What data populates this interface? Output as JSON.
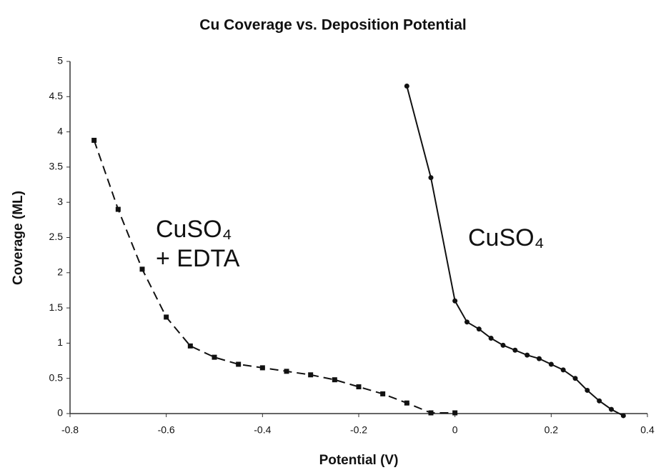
{
  "chart_data": {
    "type": "line",
    "title": "Cu Coverage vs. Deposition Potential",
    "xlabel": "Potential (V)",
    "ylabel": "Coverage (ML)",
    "xlim": [
      -0.8,
      0.4
    ],
    "xticks": [
      -0.8,
      -0.6,
      -0.4,
      -0.2,
      0,
      0.2,
      0.4
    ],
    "ylim": [
      0,
      5
    ],
    "yticks": [
      0,
      0.5,
      1,
      1.5,
      2,
      2.5,
      3,
      3.5,
      4,
      4.5,
      5
    ],
    "grid": false,
    "series": [
      {
        "color": "#111111",
        "dash": true,
        "marker": "square",
        "x": [
          -0.75,
          -0.7,
          -0.65,
          -0.6,
          -0.55,
          -0.5,
          -0.45,
          -0.4,
          -0.35,
          -0.3,
          -0.25,
          -0.2,
          -0.15,
          -0.1,
          -0.05,
          0
        ],
        "values": [
          3.88,
          2.9,
          2.05,
          1.37,
          0.96,
          0.8,
          0.7,
          0.65,
          0.6,
          0.55,
          0.48,
          0.38,
          0.28,
          0.15,
          0.01,
          0.01
        ]
      },
      {
        "color": "#111111",
        "dash": false,
        "marker": "circle",
        "x": [
          -0.1,
          -0.05,
          0,
          0.025,
          0.05,
          0.075,
          0.1,
          0.125,
          0.15,
          0.175,
          0.2,
          0.225,
          0.25,
          0.275,
          0.3,
          0.325,
          0.35
        ],
        "values": [
          4.65,
          3.35,
          1.6,
          1.3,
          1.2,
          1.07,
          0.97,
          0.9,
          0.83,
          0.78,
          0.7,
          0.62,
          0.5,
          0.33,
          0.18,
          0.06,
          -0.03
        ]
      }
    ],
    "annotations": [
      "CuSO₄",
      "+ EDTA",
      "CuSO₄"
    ]
  }
}
